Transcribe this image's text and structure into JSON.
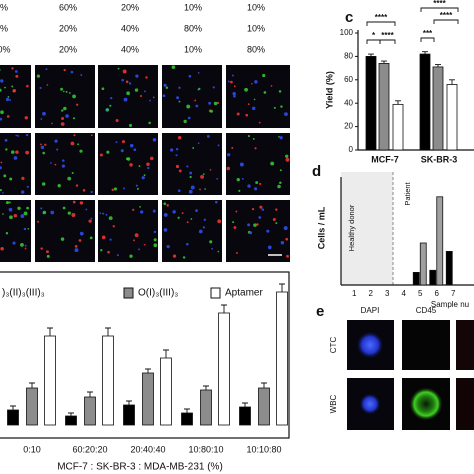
{
  "composition": {
    "blue": [
      "%",
      "60%",
      "20%",
      "10%",
      "10%"
    ],
    "red": [
      "%",
      "20%",
      "40%",
      "80%",
      "10%"
    ],
    "green": [
      "0%",
      "20%",
      "40%",
      "10%",
      "80%"
    ]
  },
  "chart_data": [
    {
      "type": "bar",
      "categories": [
        "0:10",
        "60:20:20",
        "20:40:40",
        "10:80:10",
        "10:10:80"
      ],
      "x_label": "MCF-7 : SK-BR-3 : MDA-MB-231 (%)",
      "series": [
        {
          "name": ")₃(II)₃(III)₃",
          "color": "#000000",
          "values": [
            15,
            9,
            20,
            12,
            18
          ],
          "errors": [
            4,
            3,
            4,
            4,
            4
          ]
        },
        {
          "name": "O(I)₃(III)₃",
          "color": "#8c8c8c",
          "values": [
            37,
            28,
            52,
            35,
            37
          ],
          "errors": [
            5,
            5,
            4,
            4,
            5
          ]
        },
        {
          "name": "Aptamer",
          "color": "#ffffff",
          "values": [
            89,
            89,
            67,
            112,
            133
          ],
          "errors": [
            8,
            8,
            8,
            8,
            8
          ]
        }
      ],
      "ylim": [
        0,
        150
      ]
    },
    {
      "type": "bar",
      "panel": "c",
      "y_label": "Yield (%)",
      "categories": [
        "MCF-7",
        "SK-BR-3"
      ],
      "series": [
        {
          "color": "#000000",
          "values": [
            80,
            82
          ],
          "errors": [
            2,
            2
          ]
        },
        {
          "color": "#8c8c8c",
          "values": [
            74,
            71
          ],
          "errors": [
            2,
            2
          ]
        },
        {
          "color": "#ffffff",
          "values": [
            39,
            56
          ],
          "errors": [
            3,
            4
          ]
        }
      ],
      "ylim": [
        0,
        100
      ],
      "yticks": [
        0,
        20,
        40,
        60,
        80,
        100
      ],
      "annotations": [
        "****",
        "*",
        "****",
        "****",
        "****",
        "***"
      ]
    },
    {
      "type": "bar",
      "panel": "d",
      "y_label": "Cells / mL",
      "x_label": "Sample nu",
      "categories": [
        "1",
        "2",
        "3",
        "4",
        "5",
        "6",
        "7"
      ],
      "series": [
        {
          "color": "#000000",
          "values": [
            null,
            null,
            null,
            null,
            30,
            35,
            80
          ]
        },
        {
          "color": "#a0a0a0",
          "values": [
            null,
            null,
            null,
            null,
            100,
            210,
            null
          ]
        }
      ],
      "ylim": [
        0,
        250
      ],
      "annotations": [
        "Healthy donor",
        "Patient"
      ]
    }
  ],
  "panel_e": {
    "label": "e",
    "columns": [
      "DAPI",
      "CD45"
    ],
    "rows": [
      "CTC",
      "WBC"
    ]
  }
}
